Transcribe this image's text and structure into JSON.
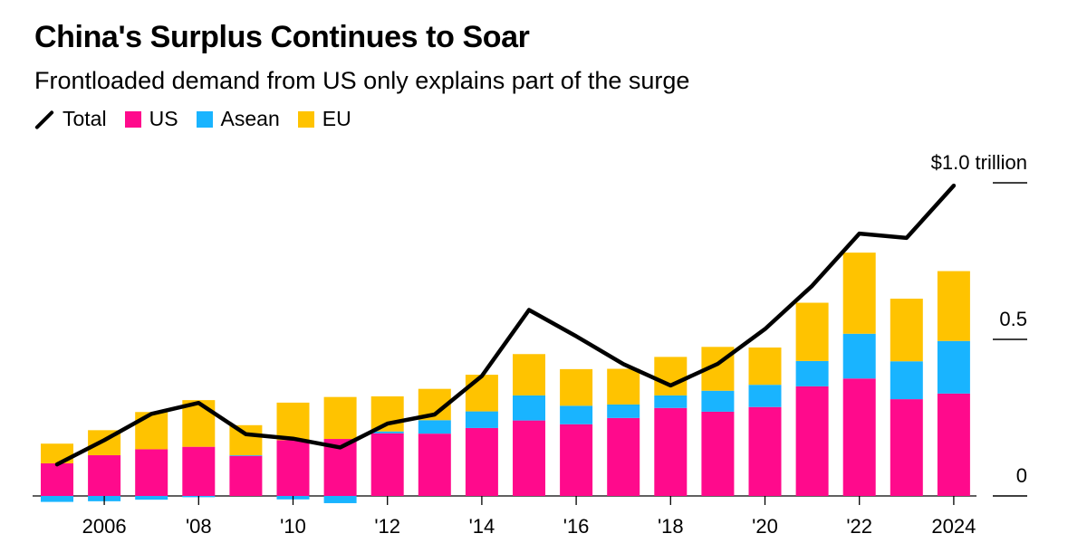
{
  "header": {
    "title": "China's Surplus Continues to Soar",
    "subtitle": "Frontloaded demand from US only explains part of the surge"
  },
  "legend": [
    {
      "name": "Total",
      "kind": "line",
      "color": "#000000"
    },
    {
      "name": "US",
      "kind": "swatch",
      "color": "#ff0a8c"
    },
    {
      "name": "Asean",
      "kind": "swatch",
      "color": "#19b4ff"
    },
    {
      "name": "EU",
      "kind": "swatch",
      "color": "#ffc300"
    }
  ],
  "chart_data": {
    "type": "bar",
    "stacked": true,
    "categories": [
      "2005",
      "2006",
      "2007",
      "2008",
      "2009",
      "2010",
      "2011",
      "2012",
      "2013",
      "2014",
      "2015",
      "2016",
      "2017",
      "2018",
      "2019",
      "2020",
      "2021",
      "2022",
      "2023",
      "2024"
    ],
    "x_tick_labels": [
      {
        "category": "2006",
        "label": "2006"
      },
      {
        "category": "2008",
        "label": "'08"
      },
      {
        "category": "2010",
        "label": "'10"
      },
      {
        "category": "2012",
        "label": "'12"
      },
      {
        "category": "2014",
        "label": "'14"
      },
      {
        "category": "2016",
        "label": "'16"
      },
      {
        "category": "2018",
        "label": "'18"
      },
      {
        "category": "2020",
        "label": "'20"
      },
      {
        "category": "2022",
        "label": "'22"
      },
      {
        "category": "2024",
        "label": "2024"
      }
    ],
    "y_ticks": [
      {
        "value": 0,
        "label": "0"
      },
      {
        "value": 0.5,
        "label": "0.5"
      },
      {
        "value": 1.0,
        "label": "$1.0 trillion"
      }
    ],
    "ylim": [
      -0.02,
      1.1
    ],
    "units": "trillion USD",
    "series": [
      {
        "name": "US",
        "color": "#ff0a8c",
        "values": [
          0.104,
          0.13,
          0.149,
          0.157,
          0.128,
          0.178,
          0.182,
          0.2,
          0.199,
          0.217,
          0.241,
          0.229,
          0.249,
          0.281,
          0.269,
          0.284,
          0.35,
          0.375,
          0.309,
          0.327
        ]
      },
      {
        "name": "Asean",
        "color": "#19b4ff",
        "values": [
          -0.019,
          -0.017,
          -0.012,
          -0.004,
          0.002,
          -0.011,
          -0.023,
          0.006,
          0.043,
          0.053,
          0.08,
          0.059,
          0.043,
          0.04,
          0.067,
          0.071,
          0.081,
          0.143,
          0.121,
          0.168
        ]
      },
      {
        "name": "EU",
        "color": "#ffc300",
        "values": [
          0.063,
          0.08,
          0.119,
          0.149,
          0.096,
          0.12,
          0.134,
          0.112,
          0.1,
          0.117,
          0.132,
          0.117,
          0.114,
          0.123,
          0.14,
          0.119,
          0.186,
          0.259,
          0.2,
          0.223
        ]
      },
      {
        "name": "Total",
        "color": "#000000",
        "kind": "line",
        "values": [
          0.101,
          0.178,
          0.262,
          0.297,
          0.197,
          0.183,
          0.155,
          0.231,
          0.26,
          0.383,
          0.594,
          0.51,
          0.421,
          0.353,
          0.422,
          0.533,
          0.671,
          0.838,
          0.824,
          0.991
        ]
      }
    ]
  }
}
